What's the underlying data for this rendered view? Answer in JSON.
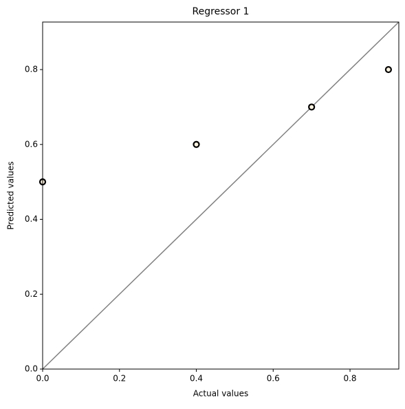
{
  "chart_data": {
    "type": "scatter",
    "title": "Regressor 1",
    "x_label": "Actual values",
    "y_label": "Predicted values",
    "x": [
      0,
      0.4,
      0.7,
      0.9
    ],
    "values": [
      0.5,
      0.6,
      0.7,
      0.8
    ],
    "color": "#fdf3dc",
    "edge_color": "#000000",
    "xlim": [
      0,
      0.927
    ],
    "ylim": [
      0,
      0.927
    ],
    "xticks": [
      {
        "value": 0,
        "label": "0.0"
      },
      {
        "value": 0.2,
        "label": "0.2"
      },
      {
        "value": 0.4,
        "label": "0.4"
      },
      {
        "value": 0.6,
        "label": "0.6"
      },
      {
        "value": 0.8,
        "label": "0.8"
      }
    ],
    "yticks": [
      {
        "value": 0,
        "label": "0.0"
      },
      {
        "value": 0.2,
        "label": "0.2"
      },
      {
        "value": 0.4,
        "label": "0.4"
      },
      {
        "value": 0.6,
        "label": "0.6"
      },
      {
        "value": 0.8,
        "label": "0.8"
      }
    ],
    "grid": false
  }
}
